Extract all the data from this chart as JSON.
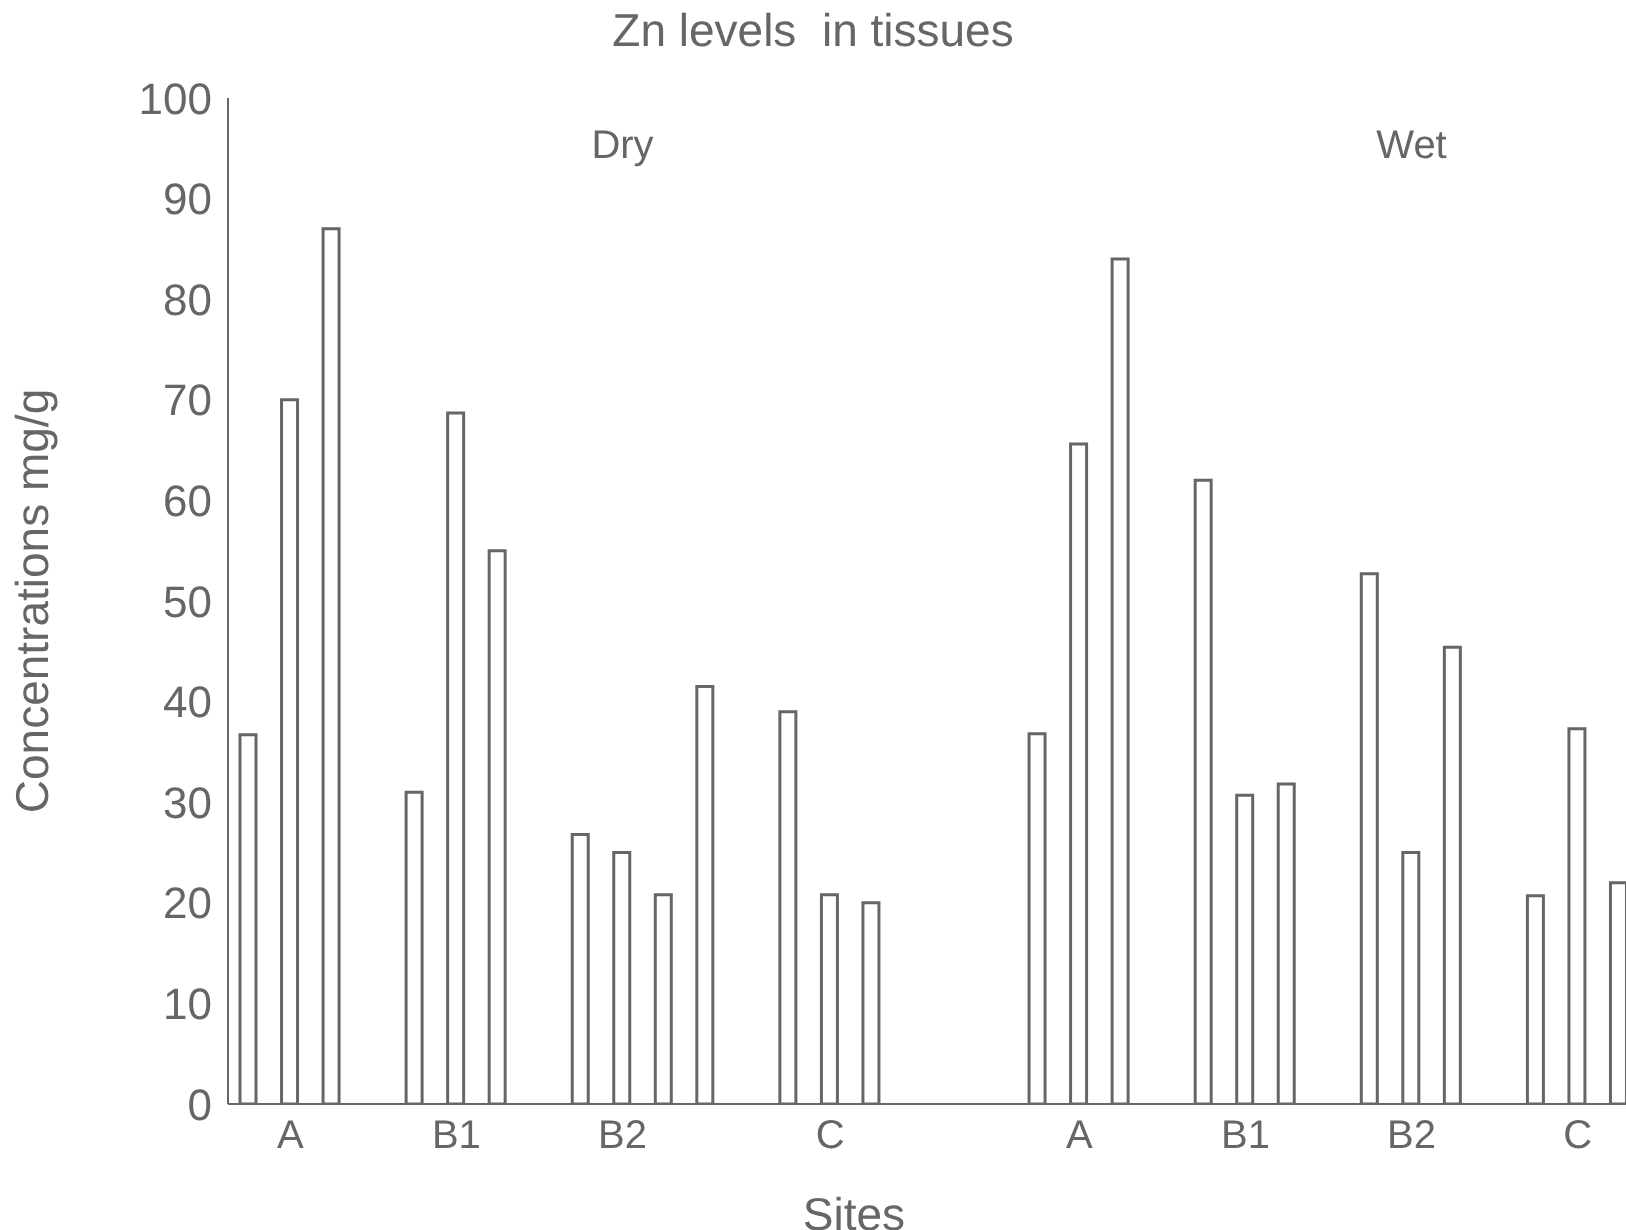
{
  "chart_data": {
    "type": "bar",
    "title": "Zn levels  in tissues",
    "xlabel": "Sites",
    "ylabel": "Concentrations mg/g",
    "annotations": [
      "Dry",
      "Wet"
    ],
    "categories": [
      null,
      "A",
      null,
      null,
      null,
      "B1",
      null,
      null,
      null,
      "B2",
      null,
      null,
      null,
      null,
      "C",
      null,
      null,
      null,
      null,
      null,
      "A",
      null,
      null,
      null,
      "B1",
      null,
      null,
      null,
      "B2",
      null,
      null,
      null,
      "C",
      null
    ],
    "values": [
      36.7,
      70,
      87,
      null,
      31,
      68.7,
      55,
      null,
      26.8,
      25,
      20.8,
      41.5,
      null,
      39,
      20.8,
      20,
      null,
      null,
      null,
      36.8,
      65.6,
      84,
      null,
      62,
      30.7,
      31.8,
      null,
      52.7,
      25,
      45.4,
      null,
      20.7,
      37.3,
      22
    ],
    "color": "#666666",
    "ylim": [
      0,
      100
    ],
    "yticks": [
      0,
      10,
      20,
      30,
      40,
      50,
      60,
      70,
      80,
      90,
      100
    ],
    "grid": false,
    "legend": false
  }
}
